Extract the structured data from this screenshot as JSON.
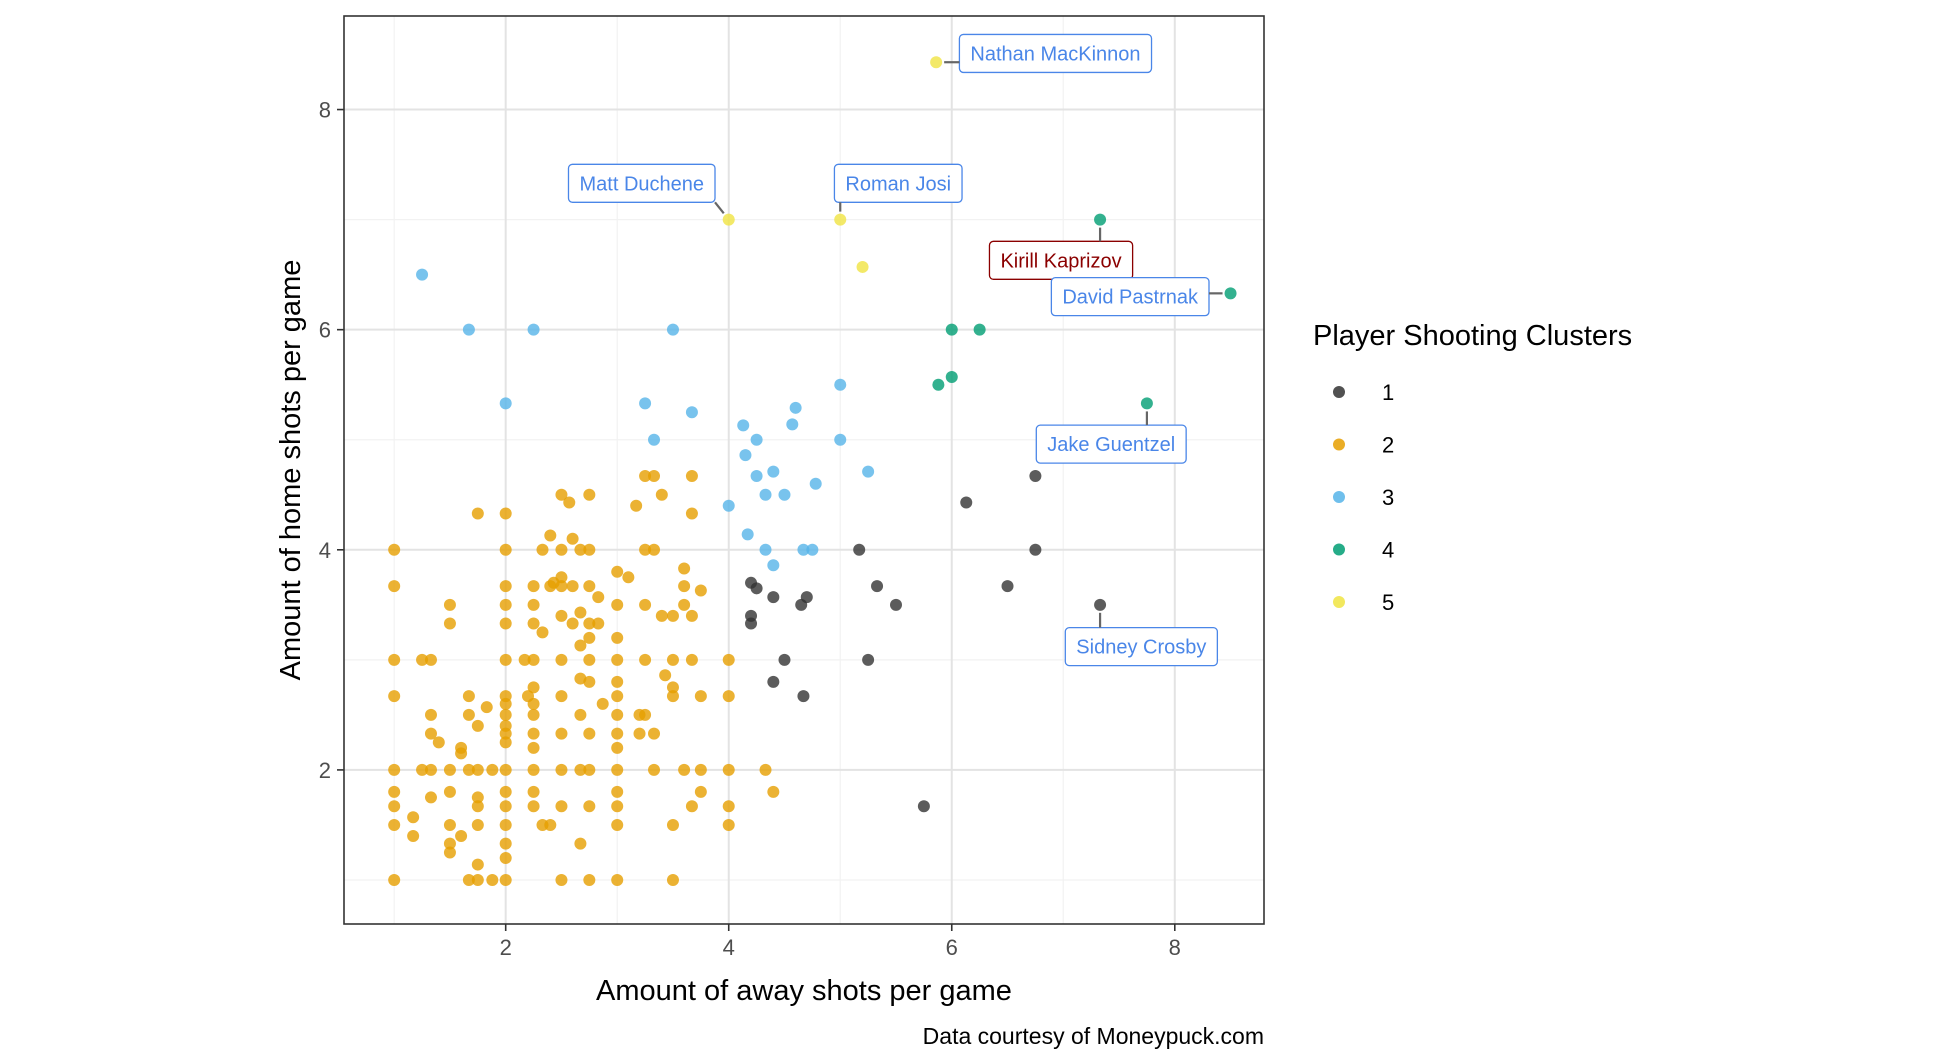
{
  "chart_data": {
    "type": "scatter",
    "xlabel": "Amount of away shots per game",
    "ylabel": "Amount of home shots per game",
    "caption": "Data courtesy of Moneypuck.com",
    "xlim": [
      0.55,
      8.8
    ],
    "ylim": [
      0.6,
      8.85
    ],
    "x_ticks": [
      2,
      4,
      6,
      8
    ],
    "y_ticks": [
      2,
      4,
      6,
      8
    ],
    "grid": true,
    "legend": {
      "title": "Player Shooting Clusters",
      "placement": "right",
      "entries": [
        {
          "label": "1",
          "color": "#333333"
        },
        {
          "label": "2",
          "color": "#E69F00"
        },
        {
          "label": "3",
          "color": "#56B4E9"
        },
        {
          "label": "4",
          "color": "#009E73"
        },
        {
          "label": "5",
          "color": "#F0E442"
        }
      ]
    },
    "series": [
      {
        "cluster": "1",
        "color": "#333333",
        "points": [
          [
            4.2,
            3.7
          ],
          [
            4.25,
            3.65
          ],
          [
            4.2,
            3.4
          ],
          [
            4.2,
            3.33
          ],
          [
            4.4,
            3.57
          ],
          [
            4.65,
            3.5
          ],
          [
            4.7,
            3.57
          ],
          [
            4.4,
            2.8
          ],
          [
            4.5,
            3.0
          ],
          [
            4.67,
            2.67
          ],
          [
            5.17,
            4.0
          ],
          [
            5.33,
            3.67
          ],
          [
            5.5,
            3.5
          ],
          [
            5.25,
            3.0
          ],
          [
            5.75,
            1.67
          ],
          [
            6.13,
            4.43
          ],
          [
            6.5,
            3.67
          ],
          [
            6.75,
            4.67
          ],
          [
            6.75,
            4.0
          ],
          [
            7.33,
            3.5
          ]
        ]
      },
      {
        "cluster": "2",
        "color": "#E69F00",
        "points": [
          [
            1.0,
            4.0
          ],
          [
            1.0,
            3.67
          ],
          [
            1.0,
            3.0
          ],
          [
            1.0,
            2.67
          ],
          [
            1.0,
            2.0
          ],
          [
            1.0,
            1.8
          ],
          [
            1.0,
            1.67
          ],
          [
            1.0,
            1.5
          ],
          [
            1.0,
            1.0
          ],
          [
            1.17,
            1.57
          ],
          [
            1.17,
            1.4
          ],
          [
            1.25,
            3.0
          ],
          [
            1.33,
            3.0
          ],
          [
            1.33,
            2.5
          ],
          [
            1.33,
            2.33
          ],
          [
            1.33,
            2.0
          ],
          [
            1.25,
            2.0
          ],
          [
            1.33,
            1.75
          ],
          [
            1.4,
            2.25
          ],
          [
            1.5,
            3.5
          ],
          [
            1.5,
            3.33
          ],
          [
            1.5,
            2.0
          ],
          [
            1.5,
            1.8
          ],
          [
            1.5,
            1.5
          ],
          [
            1.5,
            1.33
          ],
          [
            1.5,
            1.25
          ],
          [
            1.6,
            2.2
          ],
          [
            1.6,
            2.15
          ],
          [
            1.6,
            1.4
          ],
          [
            1.67,
            2.67
          ],
          [
            1.67,
            2.5
          ],
          [
            1.67,
            2.0
          ],
          [
            1.67,
            1.0
          ],
          [
            1.75,
            4.33
          ],
          [
            1.75,
            2.4
          ],
          [
            1.75,
            2.0
          ],
          [
            1.75,
            1.75
          ],
          [
            1.75,
            1.67
          ],
          [
            1.75,
            1.5
          ],
          [
            1.75,
            1.14
          ],
          [
            1.75,
            1.0
          ],
          [
            1.83,
            2.57
          ],
          [
            1.88,
            2.0
          ],
          [
            1.88,
            1.0
          ],
          [
            2.0,
            4.33
          ],
          [
            2.0,
            4.0
          ],
          [
            2.0,
            3.67
          ],
          [
            2.0,
            3.5
          ],
          [
            2.0,
            3.33
          ],
          [
            2.0,
            3.0
          ],
          [
            2.0,
            2.67
          ],
          [
            2.0,
            2.6
          ],
          [
            2.0,
            2.5
          ],
          [
            2.0,
            2.4
          ],
          [
            2.0,
            2.33
          ],
          [
            2.0,
            2.25
          ],
          [
            2.0,
            2.0
          ],
          [
            2.0,
            1.8
          ],
          [
            2.0,
            1.67
          ],
          [
            2.0,
            1.5
          ],
          [
            2.0,
            1.33
          ],
          [
            2.0,
            1.2
          ],
          [
            2.0,
            1.0
          ],
          [
            2.17,
            3.0
          ],
          [
            2.2,
            2.67
          ],
          [
            2.25,
            3.67
          ],
          [
            2.25,
            3.5
          ],
          [
            2.25,
            3.33
          ],
          [
            2.25,
            3.0
          ],
          [
            2.25,
            2.75
          ],
          [
            2.25,
            2.6
          ],
          [
            2.25,
            2.5
          ],
          [
            2.25,
            2.33
          ],
          [
            2.25,
            2.2
          ],
          [
            2.25,
            2.0
          ],
          [
            2.25,
            1.8
          ],
          [
            2.25,
            1.67
          ],
          [
            2.33,
            4.0
          ],
          [
            2.33,
            3.25
          ],
          [
            2.33,
            1.5
          ],
          [
            2.4,
            4.13
          ],
          [
            2.4,
            3.67
          ],
          [
            2.43,
            3.7
          ],
          [
            2.4,
            1.5
          ],
          [
            2.5,
            4.5
          ],
          [
            2.5,
            4.0
          ],
          [
            2.5,
            3.75
          ],
          [
            2.5,
            3.67
          ],
          [
            2.5,
            3.4
          ],
          [
            2.5,
            3.0
          ],
          [
            2.5,
            2.67
          ],
          [
            2.5,
            2.33
          ],
          [
            2.5,
            2.0
          ],
          [
            2.5,
            1.67
          ],
          [
            2.5,
            1.0
          ],
          [
            2.57,
            4.43
          ],
          [
            2.6,
            4.1
          ],
          [
            2.6,
            3.67
          ],
          [
            2.6,
            3.33
          ],
          [
            2.67,
            4.0
          ],
          [
            2.67,
            3.43
          ],
          [
            2.67,
            3.13
          ],
          [
            2.67,
            2.83
          ],
          [
            2.67,
            2.5
          ],
          [
            2.67,
            2.0
          ],
          [
            2.67,
            1.33
          ],
          [
            2.75,
            4.5
          ],
          [
            2.75,
            4.0
          ],
          [
            2.75,
            3.67
          ],
          [
            2.75,
            3.33
          ],
          [
            2.75,
            3.2
          ],
          [
            2.75,
            3.0
          ],
          [
            2.75,
            2.8
          ],
          [
            2.75,
            2.33
          ],
          [
            2.75,
            2.0
          ],
          [
            2.75,
            1.67
          ],
          [
            2.75,
            1.0
          ],
          [
            2.83,
            3.57
          ],
          [
            2.83,
            3.33
          ],
          [
            2.87,
            2.6
          ],
          [
            3.0,
            3.8
          ],
          [
            3.0,
            3.5
          ],
          [
            3.0,
            3.2
          ],
          [
            3.0,
            3.0
          ],
          [
            3.0,
            2.8
          ],
          [
            3.0,
            2.67
          ],
          [
            3.0,
            2.5
          ],
          [
            3.0,
            2.33
          ],
          [
            3.0,
            2.2
          ],
          [
            3.0,
            2.0
          ],
          [
            3.0,
            1.8
          ],
          [
            3.0,
            1.67
          ],
          [
            3.0,
            1.5
          ],
          [
            3.0,
            1.0
          ],
          [
            3.1,
            3.75
          ],
          [
            3.17,
            4.4
          ],
          [
            3.2,
            2.5
          ],
          [
            3.2,
            2.33
          ],
          [
            3.25,
            4.67
          ],
          [
            3.25,
            4.0
          ],
          [
            3.25,
            3.5
          ],
          [
            3.25,
            3.0
          ],
          [
            3.25,
            2.5
          ],
          [
            3.33,
            4.67
          ],
          [
            3.33,
            4.0
          ],
          [
            3.33,
            2.33
          ],
          [
            3.33,
            2.0
          ],
          [
            3.4,
            4.5
          ],
          [
            3.4,
            3.4
          ],
          [
            3.43,
            2.86
          ],
          [
            3.5,
            3.4
          ],
          [
            3.5,
            3.0
          ],
          [
            3.5,
            2.75
          ],
          [
            3.5,
            2.67
          ],
          [
            3.5,
            1.5
          ],
          [
            3.5,
            1.0
          ],
          [
            3.6,
            3.83
          ],
          [
            3.6,
            3.67
          ],
          [
            3.6,
            3.5
          ],
          [
            3.6,
            2.0
          ],
          [
            3.67,
            4.67
          ],
          [
            3.67,
            4.33
          ],
          [
            3.67,
            3.4
          ],
          [
            3.67,
            3.0
          ],
          [
            3.67,
            1.67
          ],
          [
            3.75,
            3.63
          ],
          [
            3.75,
            2.67
          ],
          [
            3.75,
            2.0
          ],
          [
            3.75,
            1.8
          ],
          [
            4.0,
            3.0
          ],
          [
            4.0,
            2.67
          ],
          [
            4.0,
            2.0
          ],
          [
            4.0,
            1.67
          ],
          [
            4.0,
            1.5
          ],
          [
            4.33,
            2.0
          ],
          [
            4.4,
            1.8
          ]
        ]
      },
      {
        "cluster": "3",
        "color": "#56B4E9",
        "points": [
          [
            1.25,
            6.5
          ],
          [
            1.67,
            6.0
          ],
          [
            2.25,
            6.0
          ],
          [
            3.5,
            6.0
          ],
          [
            2.0,
            5.33
          ],
          [
            3.25,
            5.33
          ],
          [
            3.67,
            5.25
          ],
          [
            3.33,
            5.0
          ],
          [
            4.0,
            4.4
          ],
          [
            4.13,
            5.13
          ],
          [
            4.15,
            4.86
          ],
          [
            4.25,
            5.0
          ],
          [
            4.25,
            4.67
          ],
          [
            4.33,
            4.5
          ],
          [
            4.4,
            4.71
          ],
          [
            4.5,
            4.5
          ],
          [
            4.57,
            5.14
          ],
          [
            4.6,
            5.29
          ],
          [
            4.17,
            4.14
          ],
          [
            4.33,
            4.0
          ],
          [
            4.4,
            3.86
          ],
          [
            4.67,
            4.0
          ],
          [
            4.75,
            4.0
          ],
          [
            4.78,
            4.6
          ],
          [
            5.0,
            5.5
          ],
          [
            5.0,
            5.0
          ],
          [
            5.25,
            4.71
          ]
        ]
      },
      {
        "cluster": "4",
        "color": "#009E73",
        "points": [
          [
            7.33,
            7.0
          ],
          [
            6.0,
            6.0
          ],
          [
            6.25,
            6.0
          ],
          [
            6.0,
            5.57
          ],
          [
            5.88,
            5.5
          ],
          [
            8.5,
            6.33
          ],
          [
            7.75,
            5.33
          ]
        ]
      },
      {
        "cluster": "5",
        "color": "#F0E442",
        "points": [
          [
            5.86,
            8.43
          ],
          [
            4.0,
            7.0
          ],
          [
            5.0,
            7.0
          ],
          [
            5.2,
            6.57
          ]
        ]
      }
    ],
    "annotations": [
      {
        "text": "Nathan MacKinnon",
        "point": [
          5.86,
          8.43
        ],
        "label": [
          6.93,
          8.51
        ],
        "color": "#4A86E8"
      },
      {
        "text": "Matt Duchene",
        "point": [
          4.0,
          7.0
        ],
        "label": [
          3.22,
          7.33
        ],
        "color": "#4A86E8"
      },
      {
        "text": "Roman Josi",
        "point": [
          5.0,
          7.0
        ],
        "label": [
          5.52,
          7.33
        ],
        "color": "#4A86E8"
      },
      {
        "text": "Kirill Kaprizov",
        "point": [
          7.33,
          7.0
        ],
        "label": [
          6.98,
          6.63
        ],
        "color": "#8B0000"
      },
      {
        "text": "David Pastrnak",
        "point": [
          8.5,
          6.33
        ],
        "label": [
          7.6,
          6.3
        ],
        "color": "#4A86E8"
      },
      {
        "text": "Jake Guentzel",
        "point": [
          7.75,
          5.33
        ],
        "label": [
          7.43,
          4.96
        ],
        "color": "#4A86E8"
      },
      {
        "text": "Sidney Crosby",
        "point": [
          7.33,
          3.5
        ],
        "label": [
          7.7,
          3.12
        ],
        "color": "#4A86E8"
      }
    ]
  }
}
